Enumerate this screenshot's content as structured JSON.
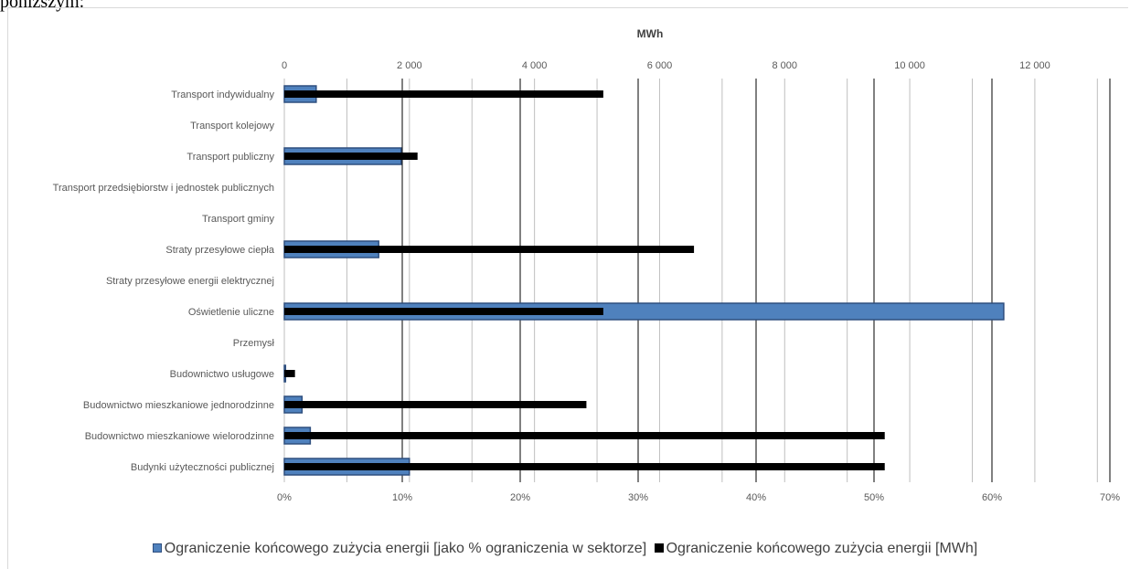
{
  "header_fragment": "poniższym:",
  "colors": {
    "percent_fill": "#4f81bd",
    "percent_border": "#2f4f7f",
    "mwh_fill": "#000000",
    "grid_minor": "#bfbfbf",
    "grid_major": "#000000",
    "axis_text": "#595959"
  },
  "chart_data": {
    "type": "bar",
    "orientation": "horizontal",
    "title": "MWh",
    "categories": [
      "Transport indywidualny",
      "Transport kolejowy",
      "Transport publiczny",
      "Transport przedsiębiorstw i jednostek publicznych",
      "Transport gminy",
      "Straty przesyłowe ciepła",
      "Straty przesyłowe energii elektrycznej",
      "Oświetlenie uliczne",
      "Przemysł",
      "Budownictwo usługowe",
      "Budownictwo mieszkaniowe jednorodzinne",
      "Budownictwo mieszkaniowe wielorodzinne",
      "Budynki użyteczności publicznej"
    ],
    "series": [
      {
        "name": "Ograniczenie końcowego zużycia energii  [jako % ograniczenia w sektorze]",
        "axis": "bottom",
        "values": [
          2.7,
          0,
          9.9,
          0,
          0,
          8.0,
          0,
          61.0,
          0,
          0.1,
          1.5,
          2.2,
          10.6
        ]
      },
      {
        "name": "Ograniczenie końcowego zużycia energii  [MWh]",
        "axis": "top",
        "values": [
          5100,
          0,
          2130,
          0,
          0,
          6550,
          0,
          5100,
          0,
          170,
          4830,
          9600,
          9600
        ]
      }
    ],
    "top_axis": {
      "label": "MWh",
      "range": [
        0,
        13200
      ],
      "ticks": [
        0,
        2000,
        4000,
        6000,
        8000,
        10000,
        12000
      ],
      "tick_labels": [
        "0",
        "2 000",
        "4 000",
        "6 000",
        "8 000",
        "10 000",
        "12 000"
      ]
    },
    "bottom_axis": {
      "range": [
        0,
        70
      ],
      "ticks": [
        0,
        10,
        20,
        30,
        40,
        50,
        60,
        70
      ],
      "tick_labels": [
        "0%",
        "10%",
        "20%",
        "30%",
        "40%",
        "50%",
        "60%",
        "70%"
      ]
    },
    "grid": true,
    "legend_position": "bottom"
  }
}
